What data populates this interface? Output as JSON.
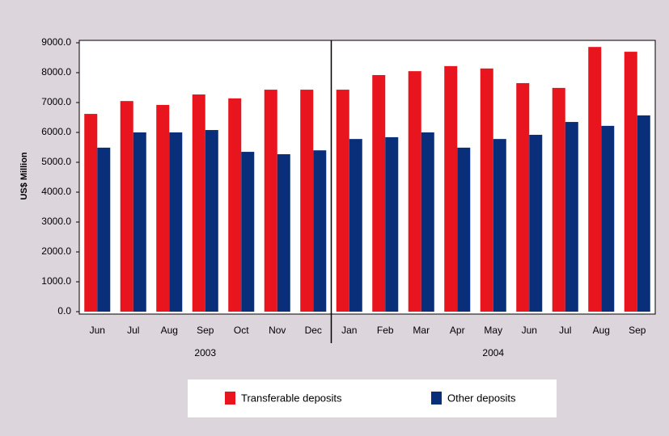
{
  "chart_data": {
    "type": "bar",
    "y_label": "US$ Million",
    "groups": [
      {
        "label": "2003",
        "categories": [
          "Jun",
          "Jul",
          "Aug",
          "Sep",
          "Oct",
          "Nov",
          "Dec"
        ]
      },
      {
        "label": "2004",
        "categories": [
          "Jan",
          "Feb",
          "Mar",
          "Apr",
          "May",
          "Jun",
          "Jul",
          "Aug",
          "Sep"
        ]
      }
    ],
    "series": [
      {
        "name": "Transferable deposits",
        "color": "#e8141e",
        "values": [
          6620,
          7050,
          6920,
          7270,
          7140,
          7430,
          7430,
          7430,
          7920,
          8050,
          8220,
          8140,
          7650,
          7490,
          8860,
          8700
        ]
      },
      {
        "name": "Other deposits",
        "color": "#0a2f7a",
        "values": [
          5490,
          6000,
          6000,
          6080,
          5350,
          5270,
          5400,
          5780,
          5840,
          6000,
          5490,
          5780,
          5920,
          6350,
          6220,
          6570
        ]
      }
    ],
    "ylim": [
      0,
      9000
    ],
    "yticks": [
      {
        "value": 0,
        "label": "0.0"
      },
      {
        "value": 1000,
        "label": "1000.0"
      },
      {
        "value": 2000,
        "label": "2000.0"
      },
      {
        "value": 3000,
        "label": "3000.0"
      },
      {
        "value": 4000,
        "label": "4000.0"
      },
      {
        "value": 5000,
        "label": "5000.0"
      },
      {
        "value": 6000,
        "label": "6000.0"
      },
      {
        "value": 7000,
        "label": "7000.0"
      },
      {
        "value": 8000,
        "label": "8000.0"
      },
      {
        "value": 9000,
        "label": "9000.0"
      }
    ],
    "legend": "bottom"
  }
}
